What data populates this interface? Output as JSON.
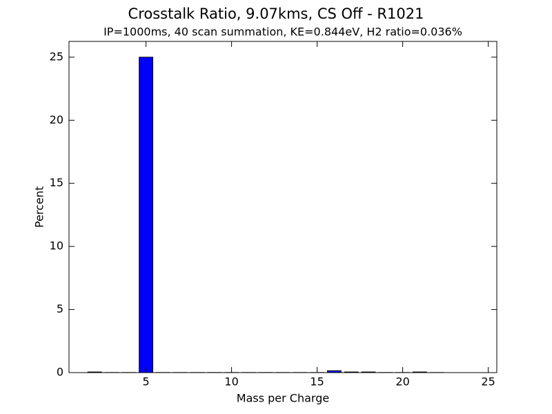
{
  "chart_data": {
    "type": "bar",
    "title": "Crosstalk Ratio, 9.07kms, CS Off - R1021",
    "subtitle": "IP=1000ms, 40 scan summation, KE=0.844eV, H2 ratio=0.036%",
    "x_label": "Mass per Charge",
    "y_label": "Percent",
    "x": [
      2,
      3,
      4,
      5,
      6,
      7,
      8,
      9,
      10,
      11,
      12,
      13,
      14,
      15,
      16,
      17,
      18,
      19,
      20,
      21,
      22
    ],
    "values": [
      0.05,
      0.01,
      0.01,
      25,
      0.01,
      0.01,
      0.01,
      0.01,
      0.01,
      0.01,
      0.01,
      0.01,
      0.01,
      0.01,
      0.15,
      0.05,
      0.05,
      0.01,
      0.01,
      0.05,
      0.01
    ],
    "color": "#0000ff",
    "xlim": [
      0.5,
      25.5
    ],
    "xticks": [
      5,
      10,
      15,
      20,
      25
    ],
    "ylim": [
      0,
      26.25
    ],
    "yticks": [
      0,
      5,
      10,
      15,
      20,
      25
    ]
  }
}
